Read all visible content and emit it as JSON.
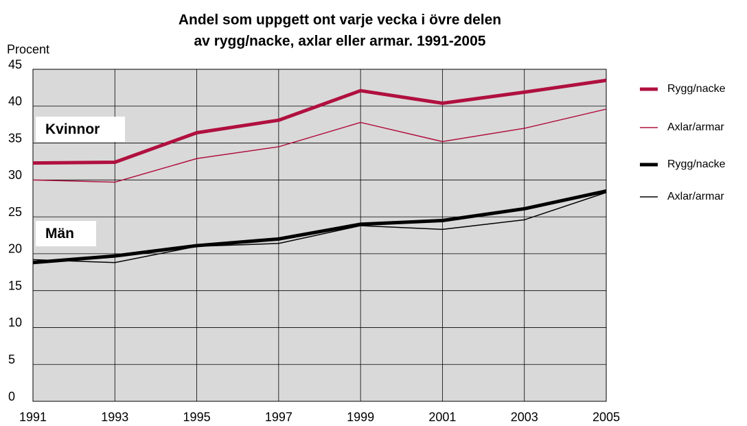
{
  "chart_data": {
    "type": "line",
    "title": [
      "Andel som uppgett ont varje vecka i övre delen",
      "av rygg/nacke,  axlar eller armar. 1991-2005"
    ],
    "y_label": "Procent",
    "x": [
      1991,
      1993,
      1995,
      1997,
      1999,
      2001,
      2003,
      2005
    ],
    "xlim": [
      1991,
      2005
    ],
    "xticks": [
      1991,
      1993,
      1995,
      1997,
      1999,
      2001,
      2003,
      2005
    ],
    "ylim": [
      0,
      45
    ],
    "yticks": [
      0,
      5,
      10,
      15,
      20,
      25,
      30,
      35,
      40,
      45
    ],
    "grid": true,
    "legend": "right",
    "annotations": [
      "Kvinnor",
      "Män"
    ],
    "series": [
      {
        "name": "Rygg/nacke",
        "color": "#b0103f",
        "line_width": 5,
        "values": [
          32.3,
          32.4,
          36.4,
          38.1,
          42.1,
          40.4,
          41.9,
          43.5
        ]
      },
      {
        "name": "Axlar/armar",
        "color": "#b0103f",
        "line_width": 1.5,
        "values": [
          30.0,
          29.7,
          32.9,
          34.5,
          37.8,
          35.2,
          37.0,
          39.6
        ]
      },
      {
        "name": "Rygg/nacke",
        "color": "#000000",
        "line_width": 5,
        "values": [
          18.8,
          19.7,
          21.1,
          22.0,
          24.0,
          24.5,
          26.1,
          28.5
        ]
      },
      {
        "name": "Axlar/armar",
        "color": "#000000",
        "line_width": 1.5,
        "values": [
          19.2,
          18.8,
          21.0,
          21.4,
          23.8,
          23.3,
          24.6,
          28.3
        ]
      }
    ]
  }
}
